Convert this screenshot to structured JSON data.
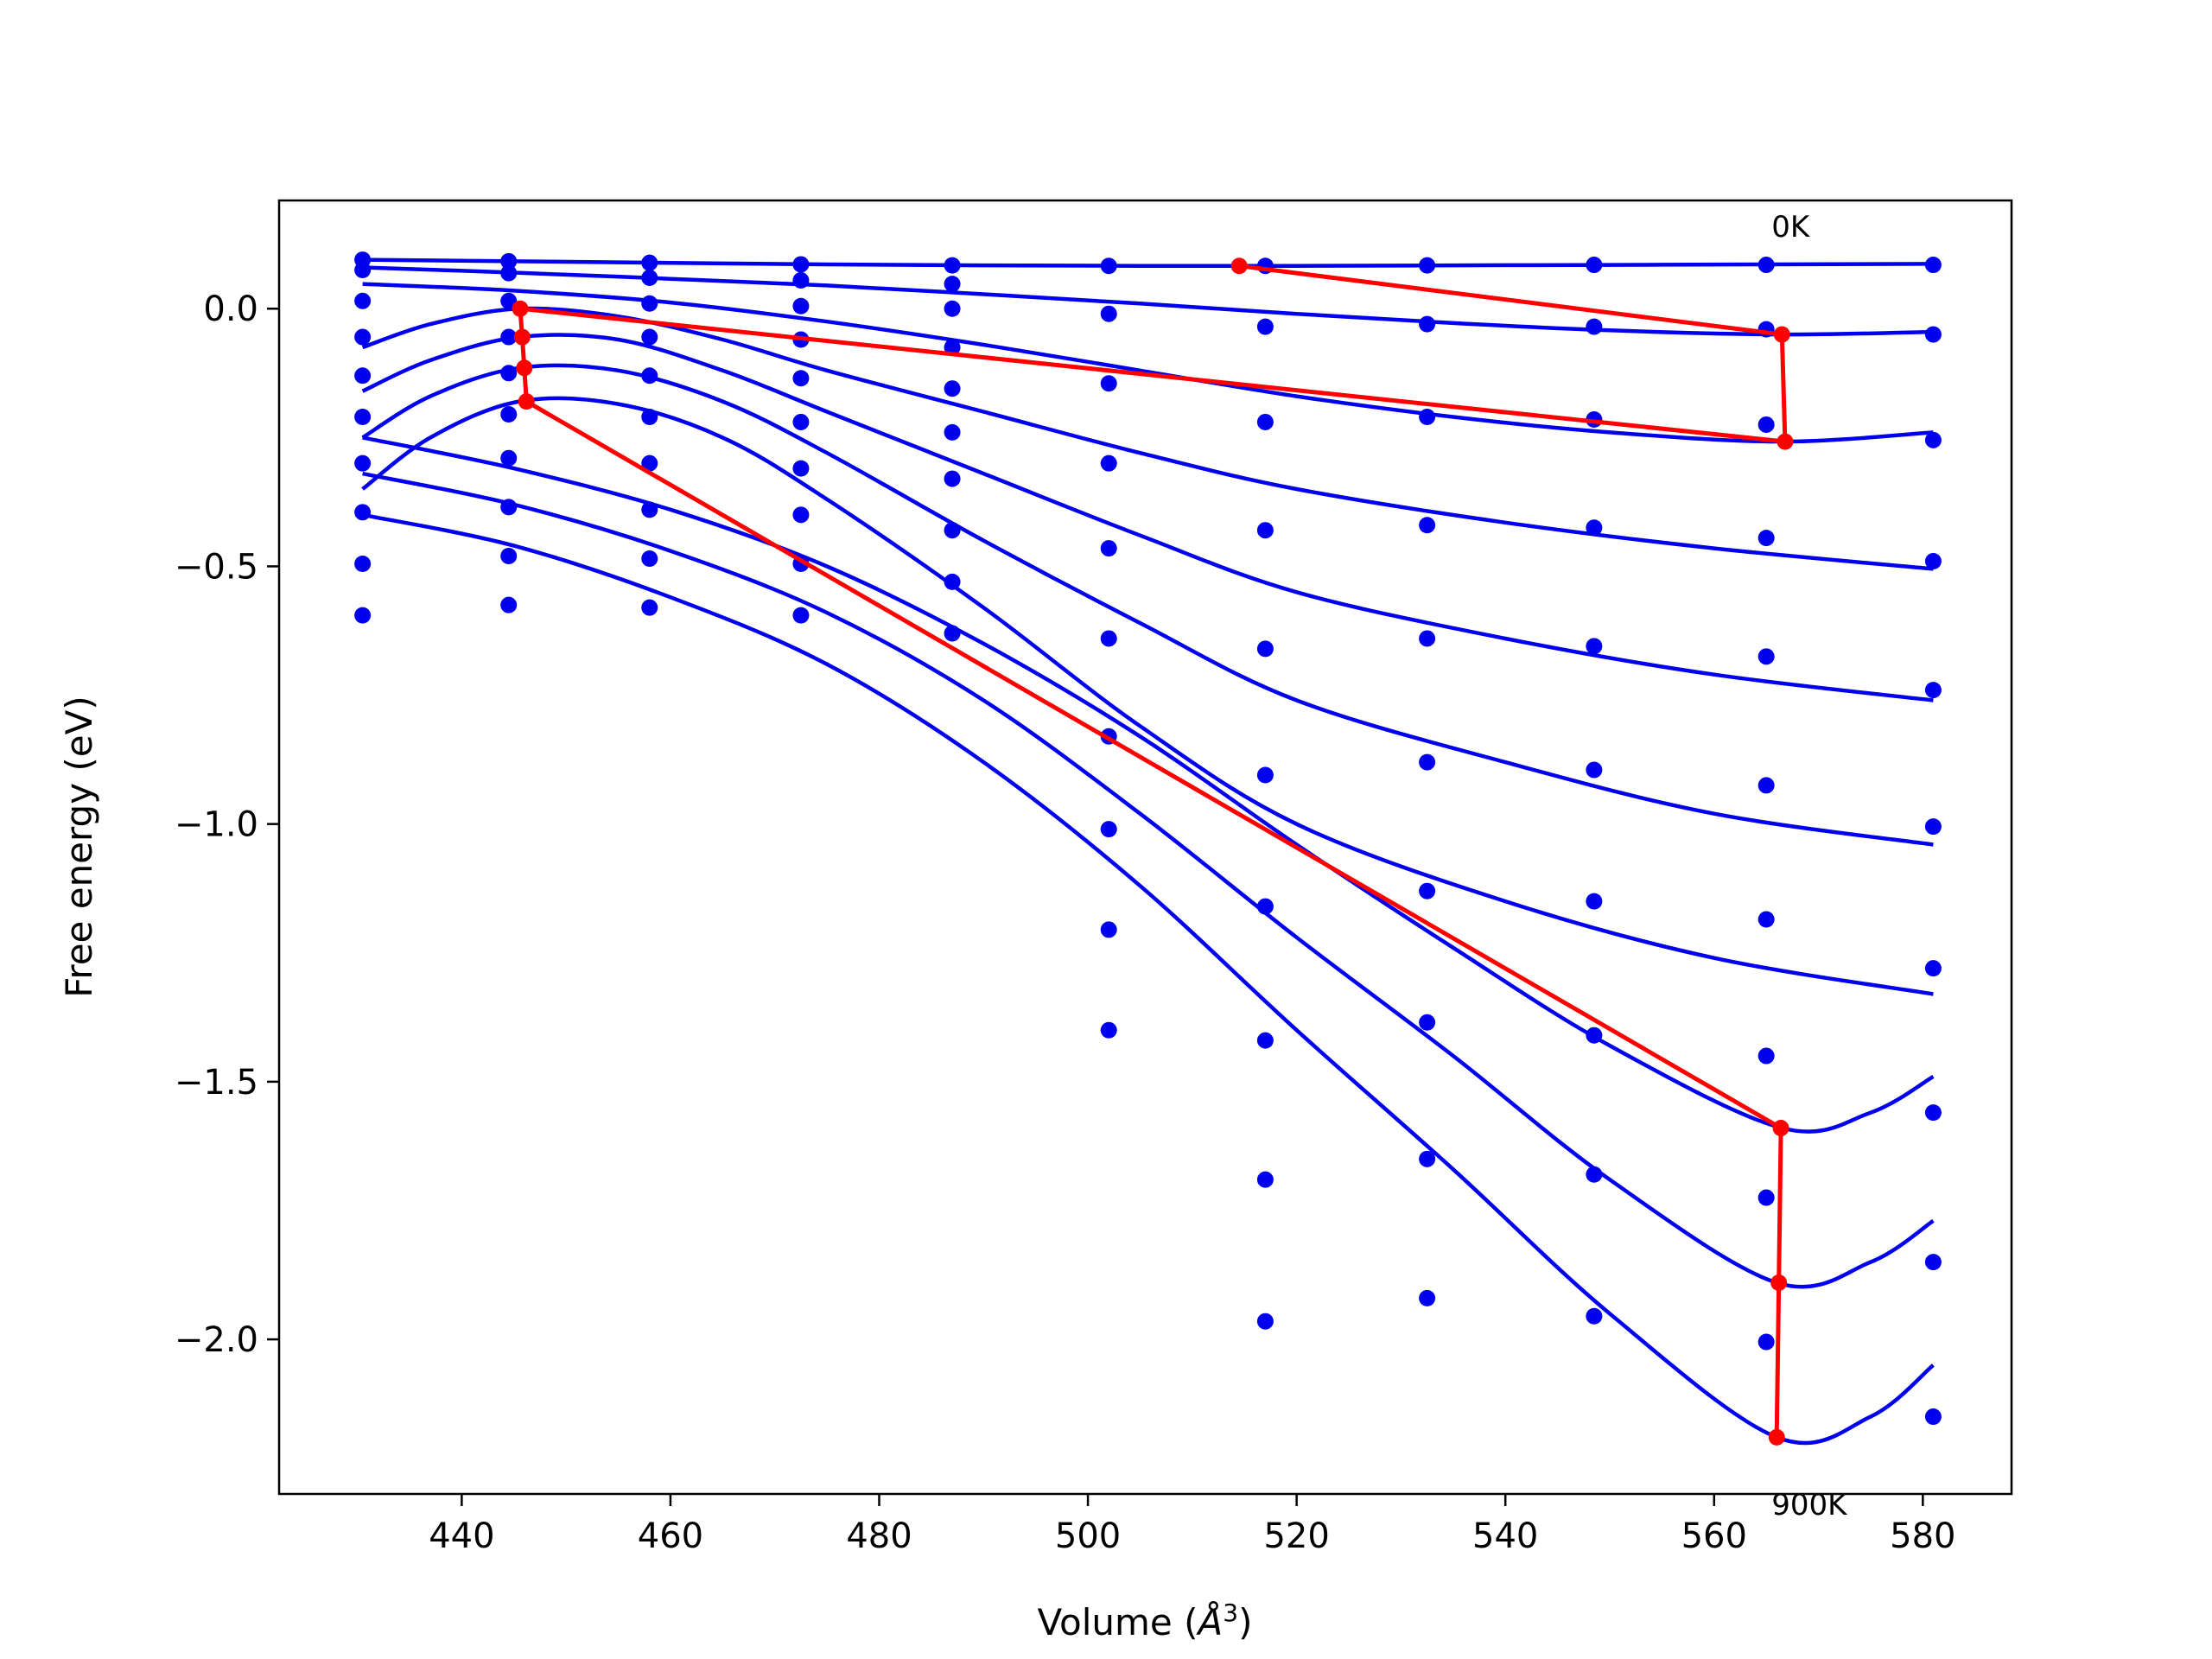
{
  "chart_data": {
    "type": "line",
    "xlabel": "Volume (",
    "xlabel_unit_symbol": "Å",
    "xlabel_unit_power": "3",
    "xlabel_close": ")",
    "ylabel": "Free energy (eV)",
    "xlim": [
      422.5,
      588.5
    ],
    "ylim": [
      -2.3,
      0.21
    ],
    "x_ticks": [
      440,
      460,
      480,
      500,
      520,
      540,
      560,
      580
    ],
    "y_ticks": [
      0.0,
      -0.5,
      -1.0,
      -1.5,
      -2.0
    ],
    "x_tick_labels": [
      "440",
      "460",
      "480",
      "500",
      "520",
      "540",
      "560",
      "580"
    ],
    "y_tick_labels": [
      "0.0",
      "−0.5",
      "−1.0",
      "−1.5",
      "−2.0"
    ],
    "grid": false,
    "legend": "none",
    "annotations": [
      {
        "text": "0K",
        "x": 565.5,
        "y": 0.16
      },
      {
        "text": "900K",
        "x": 565.5,
        "y": -2.32
      }
    ],
    "colors": {
      "fit": "#0000ee",
      "points": "#0000ee",
      "minima": "#ff0000"
    },
    "volumes": [
      430.5,
      444.5,
      458.0,
      472.5,
      487.0,
      502.0,
      517.0,
      532.5,
      548.5,
      565.0,
      581.0
    ],
    "temperature_series": [
      {
        "points": [
          0.095,
          0.092,
          0.089,
          0.086,
          0.084,
          0.083,
          0.083,
          0.084,
          0.085,
          0.085,
          0.085
        ],
        "fit": [
          [
            430.5,
            0.095
          ],
          [
            445,
            0.092
          ],
          [
            460,
            0.089
          ],
          [
            475,
            0.086
          ],
          [
            490,
            0.084
          ],
          [
            505,
            0.083
          ],
          [
            520,
            0.083
          ],
          [
            535,
            0.084
          ],
          [
            550,
            0.085
          ],
          [
            565,
            0.086
          ],
          [
            581,
            0.087
          ]
        ]
      },
      {
        "points": [
          0.075,
          0.069,
          0.06,
          0.055,
          0.048,
          -0.01,
          -0.035,
          -0.03,
          -0.035,
          -0.04,
          -0.05
        ],
        "fit": [
          [
            430.5,
            0.08
          ],
          [
            445,
            0.07
          ],
          [
            460,
            0.058
          ],
          [
            475,
            0.045
          ],
          [
            490,
            0.028
          ],
          [
            505,
            0.01
          ],
          [
            520,
            -0.01
          ],
          [
            535,
            -0.028
          ],
          [
            550,
            -0.042
          ],
          [
            566.5,
            -0.05
          ],
          [
            581,
            -0.045
          ]
        ]
      },
      {
        "points": [
          0.015,
          0.015,
          0.01,
          0.005,
          0.0,
          -0.145,
          -0.22,
          -0.21,
          -0.215,
          -0.225,
          -0.255
        ],
        "fit": [
          [
            430.5,
            0.048
          ],
          [
            445,
            0.035
          ],
          [
            460,
            0.012
          ],
          [
            475,
            -0.025
          ],
          [
            490,
            -0.07
          ],
          [
            505,
            -0.12
          ],
          [
            520,
            -0.17
          ],
          [
            535,
            -0.21
          ],
          [
            550,
            -0.24
          ],
          [
            566.5,
            -0.258
          ],
          [
            581,
            -0.24
          ]
        ]
      },
      {
        "points": [
          -0.055,
          -0.055,
          -0.055,
          -0.06,
          -0.075,
          -0.3,
          -0.43,
          -0.42,
          -0.425,
          -0.445,
          -0.49
        ],
        "fit": [
          [
            430.5,
            -0.075
          ],
          [
            437,
            -0.03
          ],
          [
            445.5,
            0.0
          ],
          [
            455,
            -0.015
          ],
          [
            465,
            -0.06
          ],
          [
            475,
            -0.12
          ],
          [
            490,
            -0.2
          ],
          [
            505,
            -0.28
          ],
          [
            520,
            -0.35
          ],
          [
            540,
            -0.415
          ],
          [
            560,
            -0.465
          ],
          [
            581,
            -0.505
          ]
        ]
      },
      {
        "points": [
          -0.13,
          -0.125,
          -0.13,
          -0.135,
          -0.155,
          -0.465,
          -0.66,
          -0.64,
          -0.655,
          -0.675,
          -0.74
        ],
        "fit": [
          [
            430.5,
            -0.16
          ],
          [
            437,
            -0.1
          ],
          [
            445.5,
            -0.055
          ],
          [
            455,
            -0.06
          ],
          [
            465,
            -0.12
          ],
          [
            475,
            -0.2
          ],
          [
            490,
            -0.32
          ],
          [
            505,
            -0.44
          ],
          [
            520,
            -0.55
          ],
          [
            540,
            -0.64
          ],
          [
            560,
            -0.71
          ],
          [
            581,
            -0.76
          ]
        ]
      },
      {
        "points": [
          -0.21,
          -0.205,
          -0.21,
          -0.22,
          -0.24,
          -0.64,
          -0.905,
          -0.88,
          -0.895,
          -0.925,
          -1.005
        ],
        "fit": [
          [
            430.5,
            -0.25
          ],
          [
            437,
            -0.17
          ],
          [
            445.5,
            -0.115
          ],
          [
            455,
            -0.12
          ],
          [
            465,
            -0.18
          ],
          [
            475,
            -0.28
          ],
          [
            490,
            -0.45
          ],
          [
            505,
            -0.61
          ],
          [
            520,
            -0.76
          ],
          [
            540,
            -0.88
          ],
          [
            560,
            -0.98
          ],
          [
            581,
            -1.04
          ]
        ]
      },
      {
        "points": [
          -0.3,
          -0.29,
          -0.3,
          -0.31,
          -0.33,
          -0.83,
          -1.16,
          -1.13,
          -1.15,
          -1.185,
          -1.28
        ],
        "fit": [
          [
            430.5,
            -0.35
          ],
          [
            437,
            -0.25
          ],
          [
            445.5,
            -0.18
          ],
          [
            455,
            -0.185
          ],
          [
            465,
            -0.25
          ],
          [
            475,
            -0.37
          ],
          [
            490,
            -0.58
          ],
          [
            505,
            -0.81
          ],
          [
            520,
            -1.0
          ],
          [
            540,
            -1.15
          ],
          [
            560,
            -1.26
          ],
          [
            581,
            -1.33
          ]
        ]
      },
      {
        "points": [
          -0.395,
          -0.385,
          -0.39,
          -0.4,
          -0.43,
          -1.01,
          -1.42,
          -1.385,
          -1.41,
          -1.45,
          -1.56
        ],
        "fit": [
          [
            430.5,
            -0.25
          ],
          [
            445,
            -0.31
          ],
          [
            460,
            -0.39
          ],
          [
            475,
            -0.5
          ],
          [
            490,
            -0.65
          ],
          [
            505,
            -0.83
          ],
          [
            520,
            -1.04
          ],
          [
            535,
            -1.24
          ],
          [
            550,
            -1.43
          ],
          [
            566.5,
            -1.59
          ],
          [
            575,
            -1.56
          ],
          [
            581,
            -1.49
          ]
        ]
      },
      {
        "points": [
          -0.495,
          -0.48,
          -0.485,
          -0.495,
          -0.53,
          -1.205,
          -1.69,
          -1.65,
          -1.68,
          -1.725,
          -1.85
        ],
        "fit": [
          [
            430.5,
            -0.32
          ],
          [
            445,
            -0.38
          ],
          [
            460,
            -0.47
          ],
          [
            475,
            -0.59
          ],
          [
            490,
            -0.76
          ],
          [
            505,
            -0.98
          ],
          [
            520,
            -1.22
          ],
          [
            535,
            -1.45
          ],
          [
            550,
            -1.69
          ],
          [
            566,
            -1.89
          ],
          [
            575,
            -1.85
          ],
          [
            581,
            -1.77
          ]
        ]
      },
      {
        "points": [
          -0.595,
          -0.575,
          -0.58,
          -0.595,
          -0.63,
          -1.4,
          -1.965,
          -1.92,
          -1.955,
          -2.005,
          -2.15
        ],
        "fit": [
          [
            430.5,
            -0.4
          ],
          [
            445,
            -0.46
          ],
          [
            460,
            -0.56
          ],
          [
            475,
            -0.69
          ],
          [
            490,
            -0.88
          ],
          [
            505,
            -1.12
          ],
          [
            520,
            -1.4
          ],
          [
            535,
            -1.67
          ],
          [
            550,
            -1.95
          ],
          [
            566,
            -2.19
          ],
          [
            575,
            -2.15
          ],
          [
            581,
            -2.05
          ]
        ]
      }
    ],
    "minimum_path": [
      [
        514.5,
        0.083
      ],
      [
        566.5,
        -0.05
      ],
      [
        566.8,
        -0.258
      ],
      [
        445.6,
        0.0
      ],
      [
        445.8,
        -0.055
      ],
      [
        446.0,
        -0.115
      ],
      [
        446.2,
        -0.18
      ],
      [
        566.4,
        -1.59
      ],
      [
        566.2,
        -1.89
      ],
      [
        566.0,
        -2.19
      ]
    ]
  }
}
